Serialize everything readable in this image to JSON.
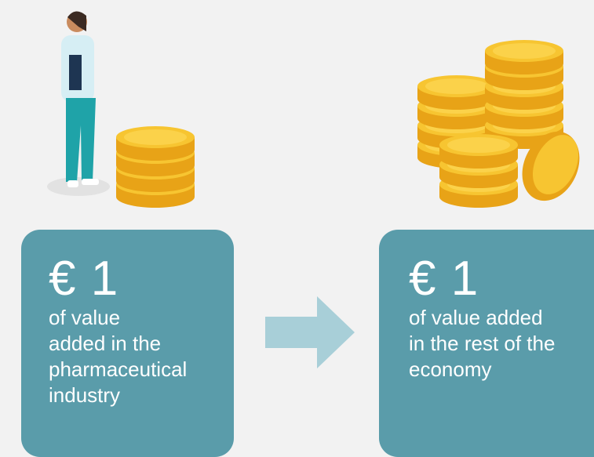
{
  "left": {
    "amount": "€ 1",
    "lines": [
      "of value",
      "added in the",
      "pharmaceutical",
      "industry"
    ]
  },
  "right": {
    "amount": "€ 1",
    "lines": [
      "of value added",
      "in the rest of the",
      "economy"
    ]
  }
}
